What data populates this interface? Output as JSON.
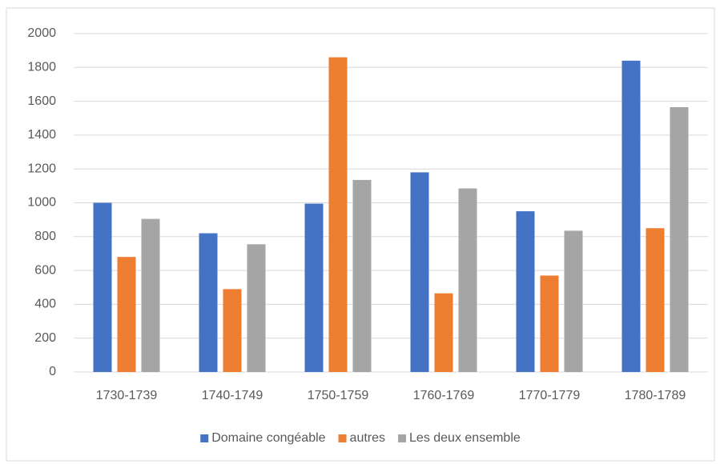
{
  "chart_data": {
    "type": "bar",
    "categories": [
      "1730-1739",
      "1740-1749",
      "1750-1759",
      "1760-1769",
      "1770-1779",
      "1780-1789"
    ],
    "series": [
      {
        "name": "Domaine congéable",
        "color": "#4472c4",
        "values": [
          1000,
          820,
          995,
          1180,
          950,
          1840
        ]
      },
      {
        "name": "autres",
        "color": "#ed7d31",
        "values": [
          680,
          490,
          1860,
          465,
          570,
          850
        ]
      },
      {
        "name": "Les deux ensemble",
        "color": "#a5a5a5",
        "values": [
          905,
          755,
          1135,
          1085,
          835,
          1565
        ]
      }
    ],
    "ylim": [
      0,
      2000
    ],
    "yticks": [
      0,
      200,
      400,
      600,
      800,
      1000,
      1200,
      1400,
      1600,
      1800,
      2000
    ],
    "grid": true,
    "legend": "bottom"
  }
}
